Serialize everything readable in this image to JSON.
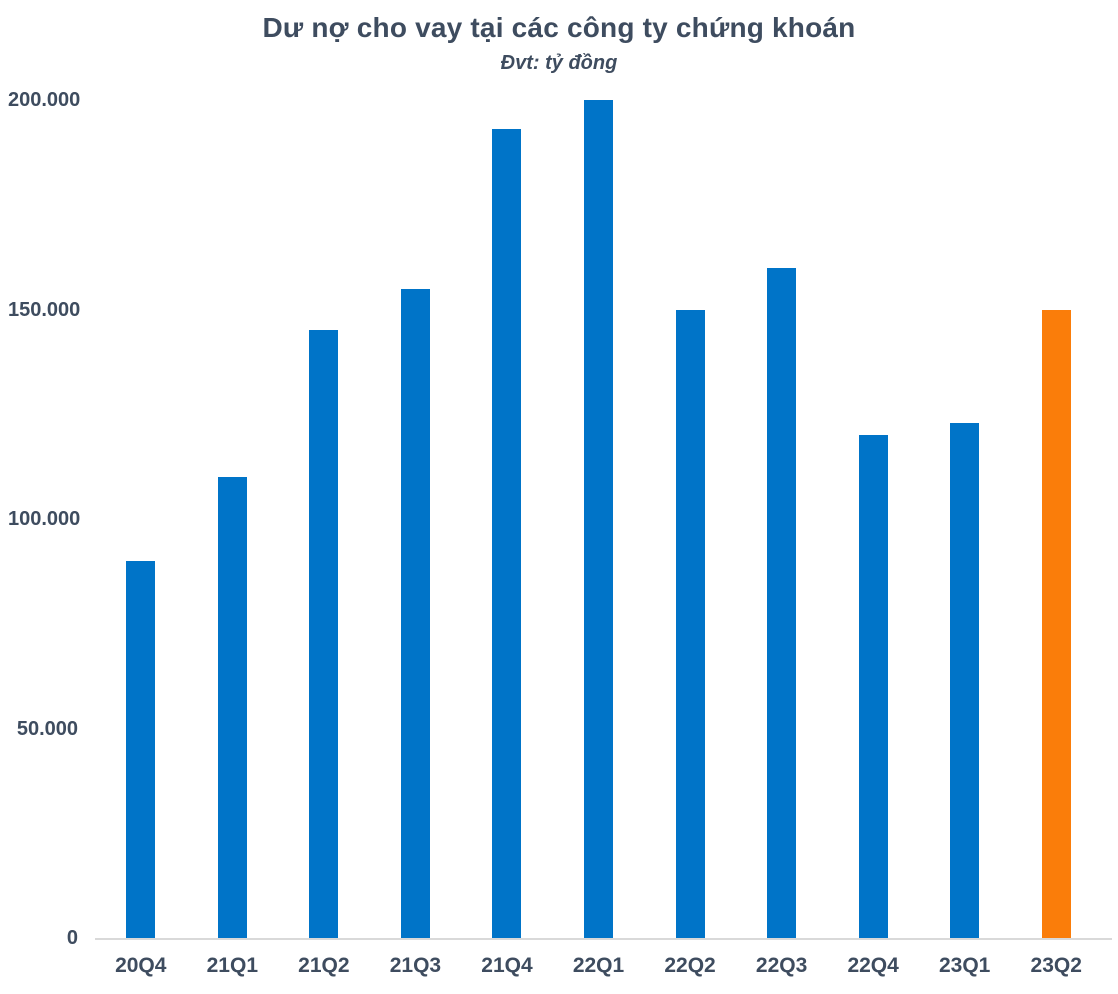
{
  "chart_data": {
    "type": "bar",
    "title": "Dư nợ cho vay tại các công ty chứng khoán",
    "subtitle": "Đvt: tỷ đồng",
    "unit": "tỷ đồng",
    "categories": [
      "20Q4",
      "21Q1",
      "21Q2",
      "21Q3",
      "21Q4",
      "22Q1",
      "22Q2",
      "22Q3",
      "22Q4",
      "23Q1",
      "23Q2"
    ],
    "values": [
      90000,
      110000,
      145000,
      155000,
      193000,
      200000,
      150000,
      160000,
      120000,
      123000,
      150000
    ],
    "ylim": [
      0,
      200000
    ],
    "yticks": [
      0,
      50000,
      100000,
      150000,
      200000
    ],
    "ytick_labels": [
      "0",
      "50.000",
      "100.000",
      "150.000",
      "200.000"
    ],
    "grid": false,
    "legend": false,
    "bar_color": "#0074C8",
    "highlight_color": "#FA7D0A",
    "highlight_index": 10,
    "axis_line_color": "#D9D9D9",
    "text_color": "#3E4C5F"
  }
}
